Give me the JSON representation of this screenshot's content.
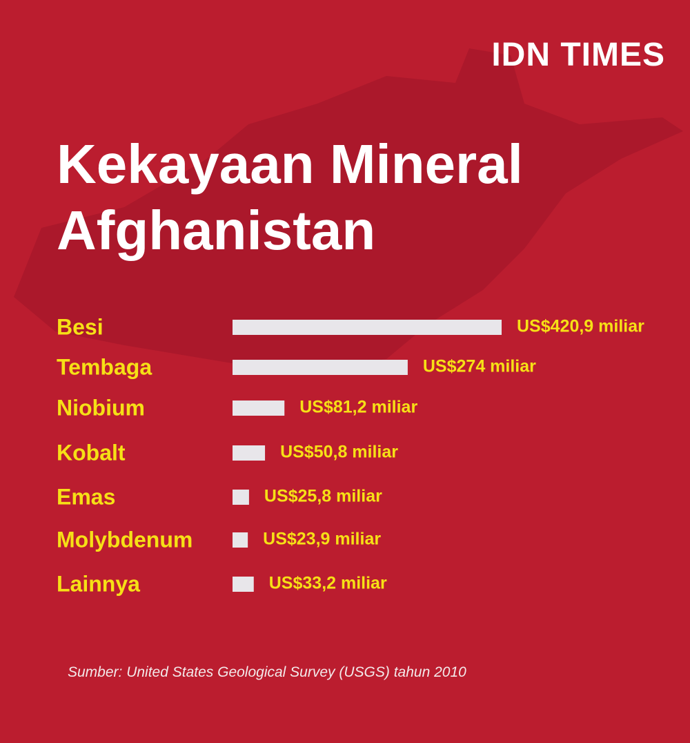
{
  "logo": "IDN TIMES",
  "chart_data": {
    "type": "bar",
    "orientation": "horizontal",
    "title": "Kekayaan Mineral Afghanistan",
    "categories": [
      "Besi",
      "Tembaga",
      "Niobium",
      "Kobalt",
      "Emas",
      "Molybdenum",
      "Lainnya"
    ],
    "values": [
      420.9,
      274,
      81.2,
      50.8,
      25.8,
      23.9,
      33.2
    ],
    "value_labels": [
      "US$420,9 miliar",
      "US$274 miliar",
      "US$81,2 miliar",
      "US$50,8 miliar",
      "US$25,8 miliar",
      "US$23,9 miliar",
      "US$33,2 miliar"
    ],
    "color": "#e8e6ea",
    "source": "Sumber: United States Geological Survey (USGS) tahun 2010"
  }
}
